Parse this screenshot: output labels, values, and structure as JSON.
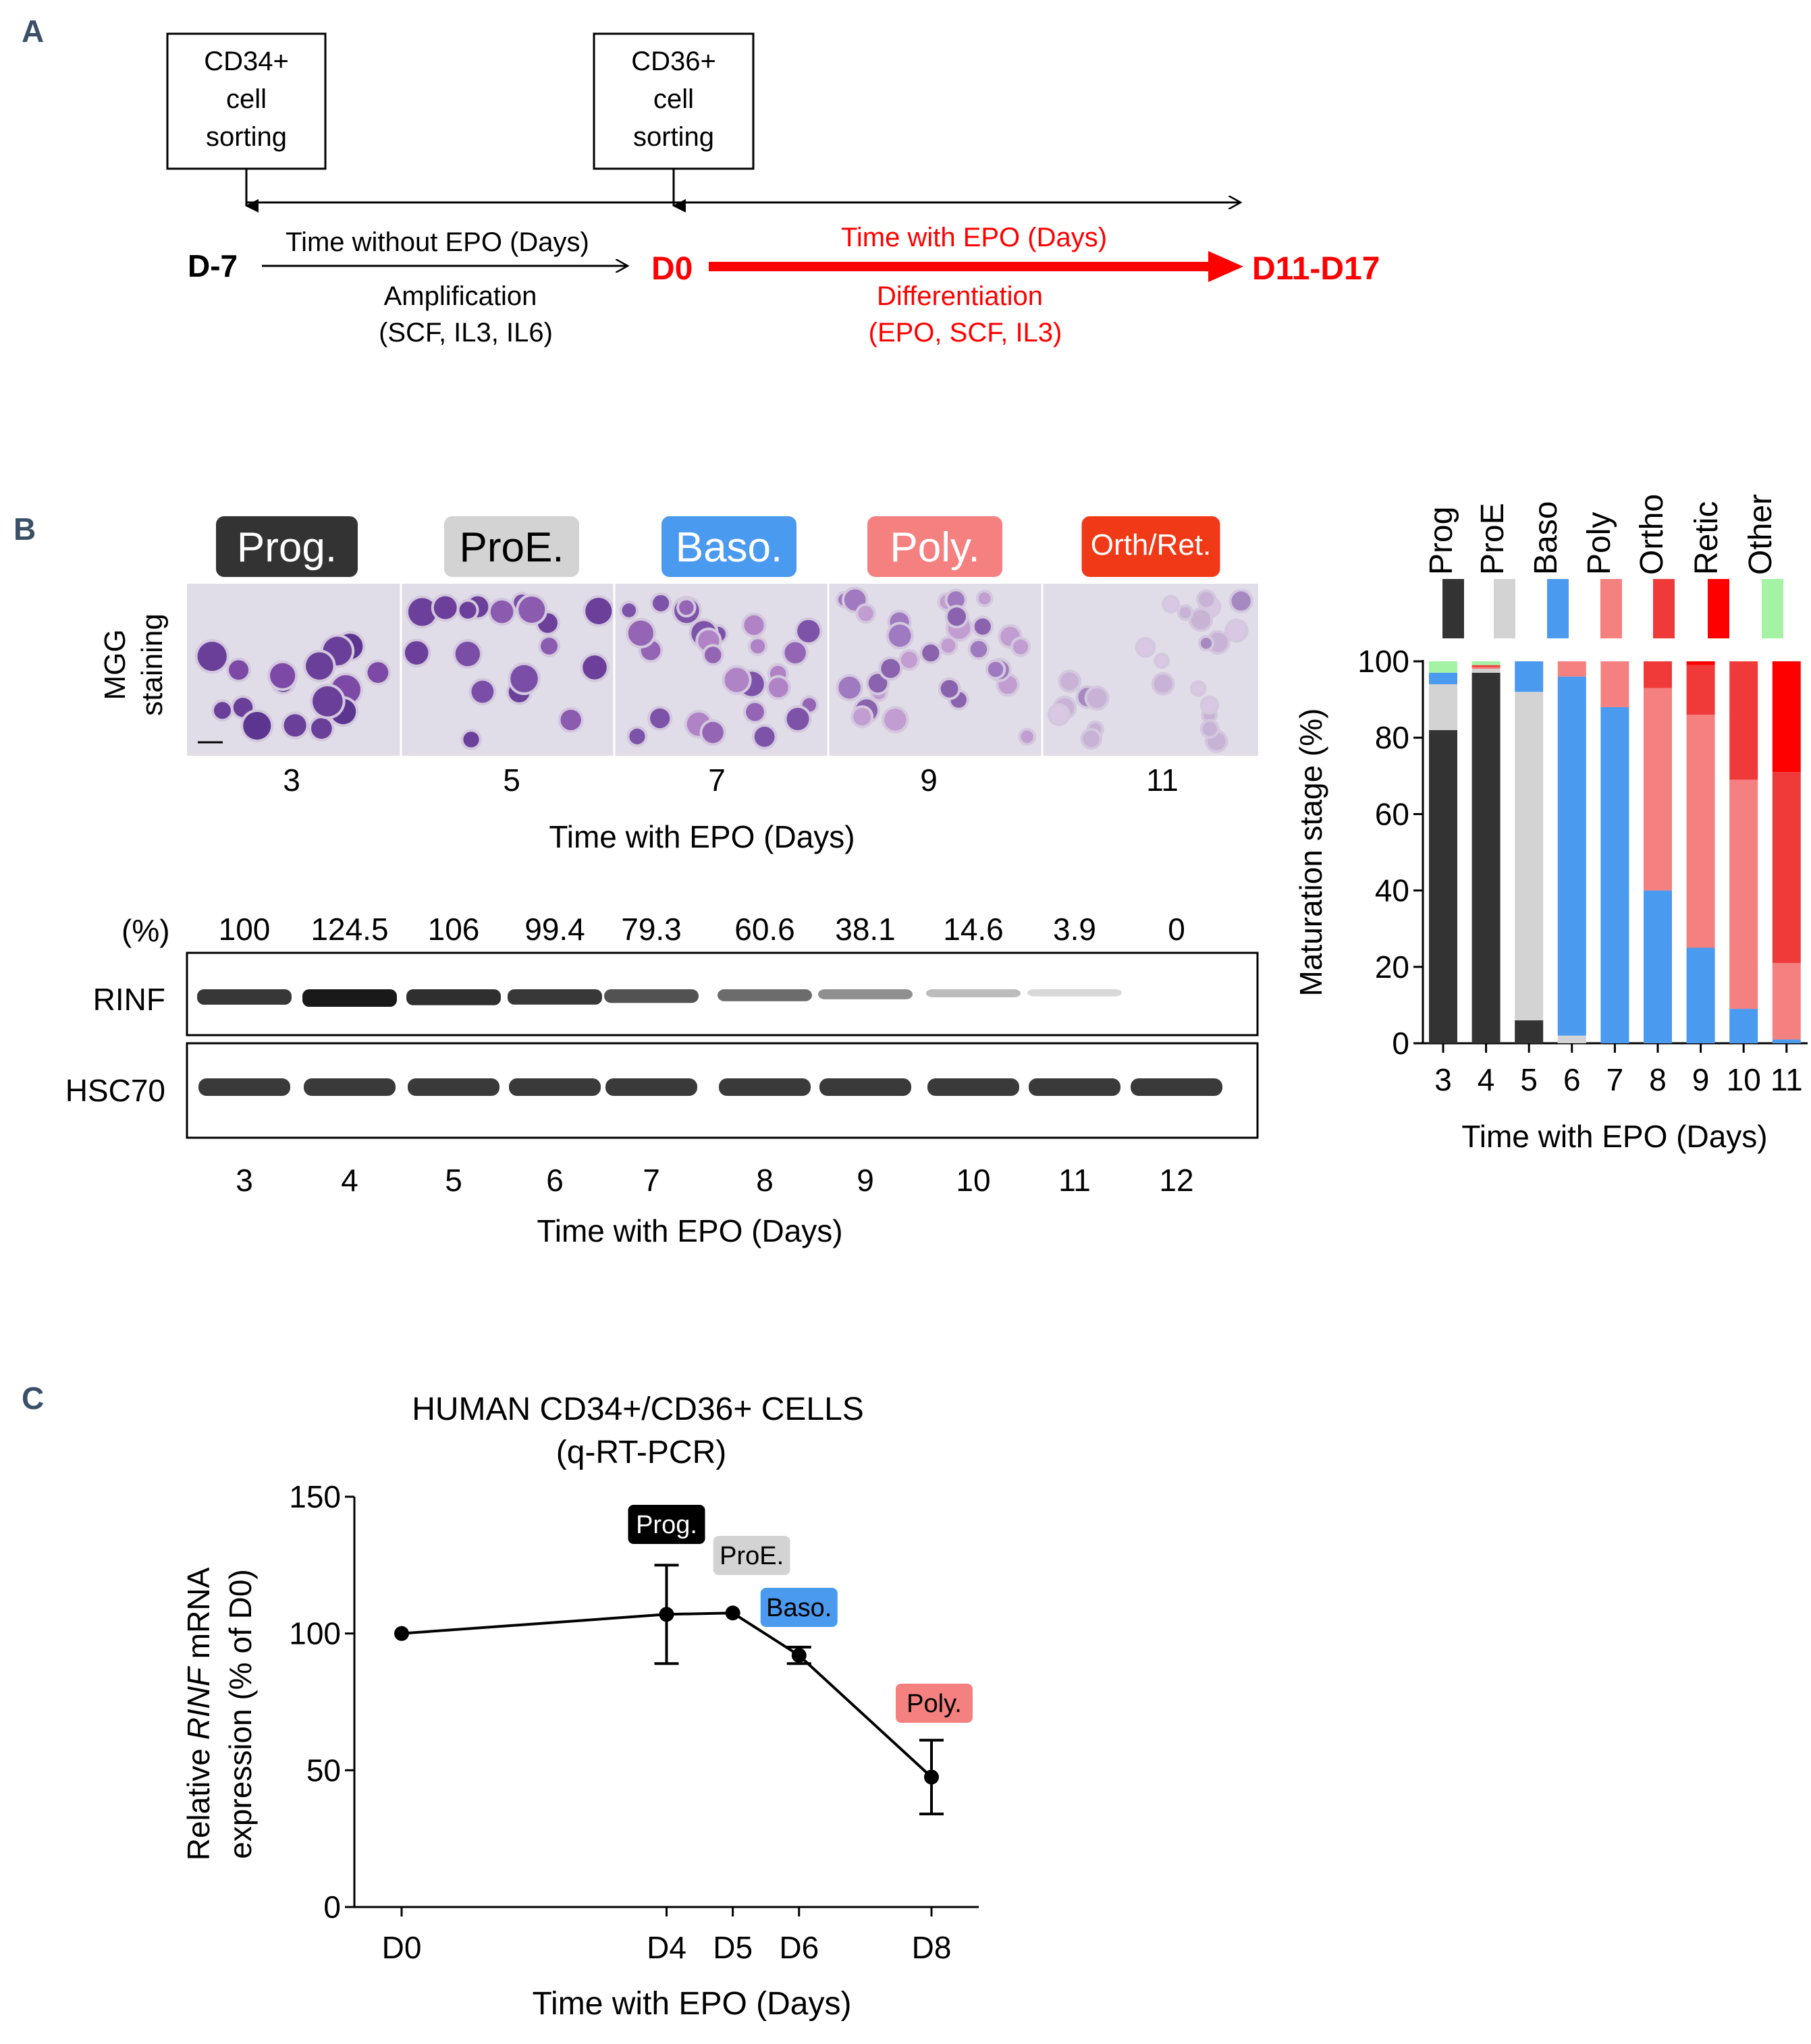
{
  "panel_labels": {
    "a": "A",
    "b": "B",
    "c": "C"
  },
  "colors": {
    "prog": "#333333",
    "proe": "#d3d3d3",
    "baso": "#4a9af0",
    "poly": "#f58080",
    "ortho": "#f03a3a",
    "retic": "#ff0000",
    "other": "#a4f2a4",
    "orthret_badge": "#f03a17",
    "accent_red": "#ff0000"
  },
  "panel_a": {
    "box1": [
      "CD34+",
      "cell",
      "sorting"
    ],
    "box2": [
      "CD36+",
      "cell",
      "sorting"
    ],
    "start": "D-7",
    "mid": "D0",
    "end": "D11-D17",
    "without_epo": "Time without EPO (Days)",
    "amplification": "Amplification",
    "amp_factors": "(SCF, IL3, IL6)",
    "with_epo": "Time with EPO (Days)",
    "differentiation": "Differentiation",
    "diff_factors": "(EPO, SCF, IL3)"
  },
  "panel_b": {
    "stage_badges": [
      "Prog.",
      "ProE.",
      "Baso.",
      "Poly.",
      "Orth/Ret."
    ],
    "mgg_label": [
      "MGG",
      "staining"
    ],
    "mgg_days": [
      "3",
      "5",
      "7",
      "9",
      "11"
    ],
    "mgg_xlabel": "Time with EPO (Days)",
    "blot": {
      "pct_label": "(%)",
      "percents": [
        "100",
        "124.5",
        "106",
        "99.4",
        "79.3",
        "60.6",
        "38.1",
        "14.6",
        "3.9",
        "0"
      ],
      "rinf_intensity": [
        100,
        124.5,
        106,
        99.4,
        79.3,
        60.6,
        38.1,
        14.6,
        3.9,
        0
      ],
      "rows": [
        "RINF",
        "HSC70"
      ],
      "days": [
        "3",
        "4",
        "5",
        "6",
        "7",
        "8",
        "9",
        "10",
        "11",
        "12"
      ],
      "xlabel": "Time with EPO (Days)"
    }
  },
  "chart_data": [
    {
      "type": "bar",
      "stacked": true,
      "title": "",
      "xlabel": "Time with EPO (Days)",
      "ylabel": "Maturation stage (%)",
      "ylim": [
        0,
        100
      ],
      "yticks": [
        "0",
        "20",
        "40",
        "60",
        "80",
        "100"
      ],
      "categories": [
        "3",
        "4",
        "5",
        "6",
        "7",
        "8",
        "9",
        "10",
        "11"
      ],
      "legend_position": "top",
      "series": [
        {
          "name": "Prog",
          "color": "#333333",
          "values": [
            82,
            97,
            6,
            0,
            0,
            0,
            0,
            0,
            0
          ]
        },
        {
          "name": "ProE",
          "color": "#d3d3d3",
          "values": [
            12,
            1,
            86,
            2,
            0,
            0,
            0,
            0,
            0
          ]
        },
        {
          "name": "Baso",
          "color": "#4a9af0",
          "values": [
            3,
            0,
            8,
            94,
            88,
            40,
            25,
            9,
            1
          ]
        },
        {
          "name": "Poly",
          "color": "#f58080",
          "values": [
            0,
            0.5,
            0,
            4,
            12,
            53,
            61,
            60,
            20
          ]
        },
        {
          "name": "Ortho",
          "color": "#f03a3a",
          "values": [
            0,
            0.5,
            0,
            0,
            0,
            7,
            13,
            31,
            50
          ]
        },
        {
          "name": "Retic",
          "color": "#ff0000",
          "values": [
            0,
            0,
            0,
            0,
            0,
            0,
            1,
            0,
            29
          ]
        },
        {
          "name": "Other",
          "color": "#a4f2a4",
          "values": [
            3,
            1,
            0,
            0,
            0,
            0,
            0,
            0,
            0
          ]
        }
      ]
    },
    {
      "type": "line",
      "title": [
        "HUMAN CD34+/CD36+ CELLS",
        "(q-RT-PCR)"
      ],
      "xlabel": "Time with EPO (Days)",
      "ylabel": [
        "Relative ",
        "RINF",
        " mRNA",
        "expression (% of D0)"
      ],
      "ylim": [
        0,
        150
      ],
      "yticks": [
        "0",
        "50",
        "100",
        "150"
      ],
      "x_labels": [
        "D0",
        "D4",
        "D5",
        "D6",
        "D8"
      ],
      "x": [
        0,
        4,
        5,
        6,
        8
      ],
      "values": [
        100,
        107,
        107.5,
        92,
        47.5
      ],
      "error_low": [
        0,
        18,
        0,
        3,
        13.5
      ],
      "error_high": [
        0,
        18,
        0,
        3,
        13.5
      ],
      "annotations": [
        {
          "text": "Prog.",
          "at": 1,
          "color": "#000000",
          "text_color": "#ffffff"
        },
        {
          "text": "ProE.",
          "at": 2,
          "color": "#d3d3d3",
          "text_color": "#000000"
        },
        {
          "text": "Baso.",
          "at": 3,
          "color": "#4a9af0",
          "text_color": "#000000"
        },
        {
          "text": "Poly.",
          "at": 4,
          "color": "#f58080",
          "text_color": "#000000"
        }
      ]
    }
  ]
}
